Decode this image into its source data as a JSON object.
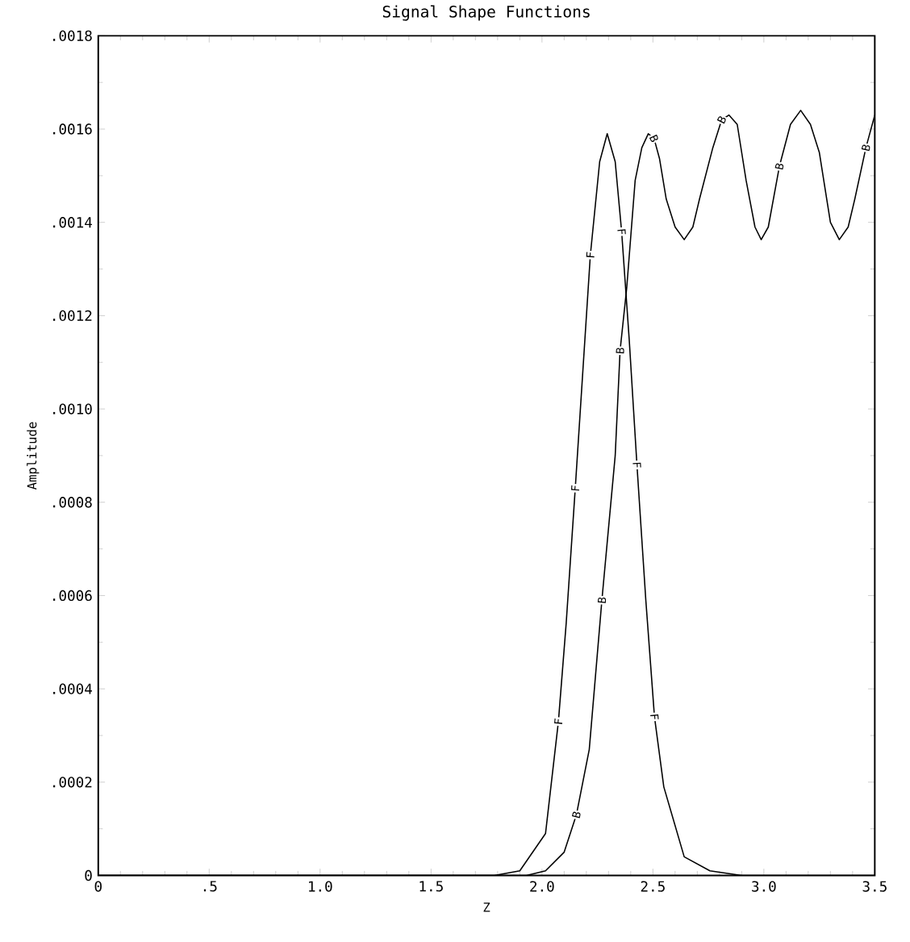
{
  "chart_data": {
    "type": "line",
    "title": "Signal Shape Functions",
    "xlabel": "Z",
    "ylabel": "Amplitude",
    "xlim": [
      0,
      3.5
    ],
    "ylim": [
      0,
      0.0018
    ],
    "xticks": [
      {
        "value": 0,
        "label": "0"
      },
      {
        "value": 0.5,
        "label": ".5"
      },
      {
        "value": 1,
        "label": "1.0"
      },
      {
        "value": 1.5,
        "label": "1.5"
      },
      {
        "value": 2,
        "label": "2.0"
      },
      {
        "value": 2.5,
        "label": "2.5"
      },
      {
        "value": 3,
        "label": "3.0"
      },
      {
        "value": 3.5,
        "label": "3.5"
      }
    ],
    "yticks": [
      {
        "value": 0,
        "label": "0"
      },
      {
        "value": 0.0002,
        "label": ".0002"
      },
      {
        "value": 0.0004,
        "label": ".0004"
      },
      {
        "value": 0.0006,
        "label": ".0006"
      },
      {
        "value": 0.0008,
        "label": ".0008"
      },
      {
        "value": 0.001,
        "label": ".0010"
      },
      {
        "value": 0.0012,
        "label": ".0012"
      },
      {
        "value": 0.0014,
        "label": ".0014"
      },
      {
        "value": 0.0016,
        "label": ".0016"
      },
      {
        "value": 0.0018,
        "label": ".0018"
      }
    ],
    "series": [
      {
        "name": "F",
        "color": "#000000",
        "x": [
          0,
          1.5,
          1.785,
          1.9,
          2.016,
          2.074,
          2.109,
          2.15,
          2.218,
          2.26,
          2.294,
          2.33,
          2.359,
          2.393,
          2.428,
          2.468,
          2.507,
          2.549,
          2.641,
          2.757,
          2.9,
          3.5
        ],
        "values": [
          0,
          0,
          0,
          1e-05,
          9e-05,
          0.00033,
          0.00054,
          0.00083,
          0.00133,
          0.00153,
          0.00159,
          0.00153,
          0.00138,
          0.00115,
          0.00088,
          0.00059,
          0.00034,
          0.00019,
          4e-05,
          1e-05,
          0,
          0
        ]
      },
      {
        "name": "B",
        "color": "#000000",
        "x": [
          0,
          1.5,
          1.82,
          1.93,
          2.016,
          2.1,
          2.155,
          2.213,
          2.27,
          2.33,
          2.352,
          2.382,
          2.42,
          2.45,
          2.479,
          2.505,
          2.53,
          2.56,
          2.6,
          2.641,
          2.68,
          2.71,
          2.77,
          2.81,
          2.843,
          2.88,
          2.92,
          2.96,
          2.988,
          3.02,
          3.07,
          3.12,
          3.166,
          3.21,
          3.25,
          3.3,
          3.34,
          3.38,
          3.41,
          3.46,
          3.5
        ],
        "values": [
          0,
          0,
          0,
          0,
          1e-05,
          5e-05,
          0.00013,
          0.00027,
          0.00059,
          0.0009,
          0.001125,
          0.00126,
          0.00149,
          0.00156,
          0.00159,
          0.00158,
          0.001536,
          0.00145,
          0.00139,
          0.001363,
          0.00139,
          0.00145,
          0.00156,
          0.00162,
          0.00163,
          0.00161,
          0.00149,
          0.00139,
          0.001363,
          0.00139,
          0.00152,
          0.00161,
          0.00164,
          0.00161,
          0.00155,
          0.0014,
          0.001363,
          0.00139,
          0.00145,
          0.00156,
          0.00163
        ]
      }
    ]
  }
}
